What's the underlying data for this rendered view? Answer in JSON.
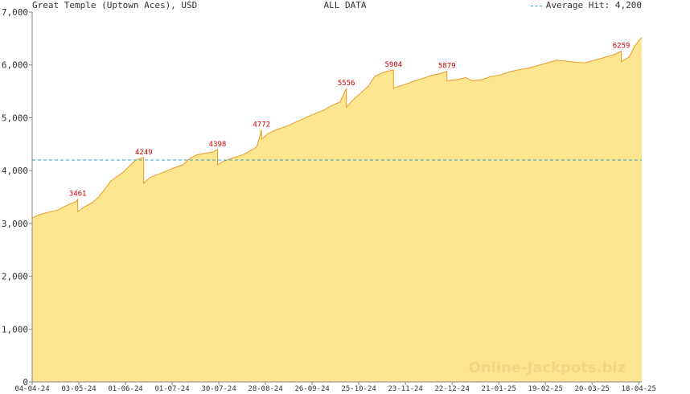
{
  "header": {
    "title": "Great Temple (Uptown Aces), USD",
    "subtitle": "ALL DATA",
    "legend_label": "Average Hit: 4,200"
  },
  "watermark": "Online-Jackpots.biz",
  "colors": {
    "fill": "#fde68f",
    "line": "#e89b2a",
    "peak_label": "#cc0000",
    "average_line": "#3aa1c9",
    "axis": "#888888",
    "grid": "#eeeeee"
  },
  "chart_data": {
    "type": "area",
    "title": "Great Temple (Uptown Aces), USD",
    "subtitle": "ALL DATA",
    "ylim": [
      0,
      7000
    ],
    "y_ticks": [
      0,
      1000,
      2000,
      3000,
      4000,
      5000,
      6000,
      7000
    ],
    "y_tick_labels": [
      "0",
      "1,000",
      "2,000",
      "3,000",
      "4,000",
      "5,000",
      "6,000",
      "7,000"
    ],
    "x_ticks": [
      "04-04-24",
      "03-05-24",
      "01-06-24",
      "01-07-24",
      "30-07-24",
      "28-08-24",
      "26-09-24",
      "25-10-24",
      "23-11-24",
      "22-12-24",
      "21-01-25",
      "19-02-25",
      "20-03-25",
      "18-04-25"
    ],
    "x_range_days": [
      0,
      388
    ],
    "average_hit": 4200,
    "grid": false,
    "legend_position": "top-right",
    "series": [
      {
        "values": [
          [
            0,
            3100
          ],
          [
            4,
            3160
          ],
          [
            10,
            3210
          ],
          [
            16,
            3250
          ],
          [
            20,
            3310
          ],
          [
            24,
            3370
          ],
          [
            28,
            3410
          ],
          [
            29,
            3461
          ],
          [
            29,
            3220
          ],
          [
            33,
            3310
          ],
          [
            38,
            3390
          ],
          [
            42,
            3490
          ],
          [
            46,
            3640
          ],
          [
            50,
            3800
          ],
          [
            54,
            3890
          ],
          [
            58,
            3970
          ],
          [
            62,
            4090
          ],
          [
            66,
            4200
          ],
          [
            71,
            4249
          ],
          [
            71,
            3760
          ],
          [
            75,
            3870
          ],
          [
            82,
            3950
          ],
          [
            90,
            4050
          ],
          [
            96,
            4110
          ],
          [
            100,
            4220
          ],
          [
            104,
            4290
          ],
          [
            110,
            4330
          ],
          [
            115,
            4350
          ],
          [
            118,
            4398
          ],
          [
            118,
            4110
          ],
          [
            122,
            4180
          ],
          [
            128,
            4240
          ],
          [
            134,
            4300
          ],
          [
            138,
            4360
          ],
          [
            143,
            4450
          ],
          [
            146,
            4772
          ],
          [
            146,
            4590
          ],
          [
            150,
            4700
          ],
          [
            156,
            4780
          ],
          [
            162,
            4840
          ],
          [
            168,
            4920
          ],
          [
            174,
            5000
          ],
          [
            180,
            5080
          ],
          [
            186,
            5150
          ],
          [
            190,
            5220
          ],
          [
            196,
            5300
          ],
          [
            200,
            5556
          ],
          [
            200,
            5200
          ],
          [
            204,
            5330
          ],
          [
            210,
            5490
          ],
          [
            214,
            5600
          ],
          [
            218,
            5780
          ],
          [
            222,
            5840
          ],
          [
            226,
            5880
          ],
          [
            230,
            5904
          ],
          [
            230,
            5560
          ],
          [
            236,
            5620
          ],
          [
            242,
            5680
          ],
          [
            248,
            5740
          ],
          [
            254,
            5800
          ],
          [
            260,
            5840
          ],
          [
            264,
            5879
          ],
          [
            264,
            5700
          ],
          [
            270,
            5720
          ],
          [
            276,
            5760
          ],
          [
            280,
            5700
          ],
          [
            286,
            5720
          ],
          [
            292,
            5780
          ],
          [
            298,
            5810
          ],
          [
            304,
            5870
          ],
          [
            310,
            5910
          ],
          [
            316,
            5940
          ],
          [
            322,
            5990
          ],
          [
            328,
            6040
          ],
          [
            334,
            6090
          ],
          [
            340,
            6070
          ],
          [
            346,
            6050
          ],
          [
            352,
            6040
          ],
          [
            358,
            6090
          ],
          [
            364,
            6140
          ],
          [
            370,
            6190
          ],
          [
            375,
            6259
          ],
          [
            375,
            6060
          ],
          [
            380,
            6150
          ],
          [
            384,
            6380
          ],
          [
            388,
            6520
          ]
        ]
      }
    ],
    "peak_labels": [
      {
        "x": 29,
        "y": 3461,
        "text": "3461"
      },
      {
        "x": 71,
        "y": 4249,
        "text": "4249"
      },
      {
        "x": 118,
        "y": 4398,
        "text": "4398"
      },
      {
        "x": 146,
        "y": 4772,
        "text": "4772"
      },
      {
        "x": 200,
        "y": 5556,
        "text": "5556"
      },
      {
        "x": 230,
        "y": 5904,
        "text": "5904"
      },
      {
        "x": 264,
        "y": 5879,
        "text": "5879"
      },
      {
        "x": 375,
        "y": 6259,
        "text": "6259"
      }
    ]
  }
}
